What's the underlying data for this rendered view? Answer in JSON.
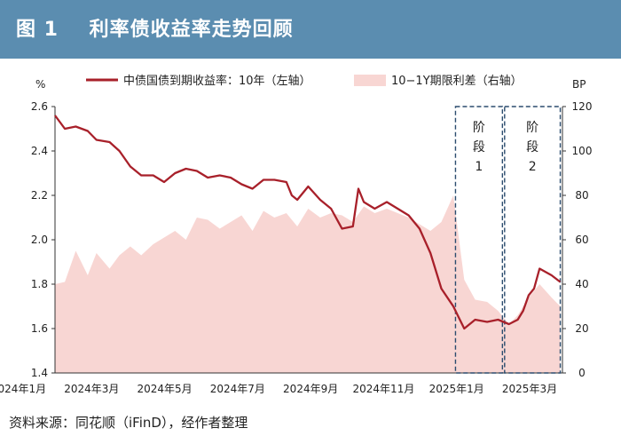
{
  "figure": {
    "title": "图 1    利率债收益率走势回顾",
    "source": "资料来源：同花顺（iFinD），经作者整理"
  },
  "chart_data": {
    "type": "line",
    "x_ticks": [
      "2024年1月",
      "2024年3月",
      "2024年5月",
      "2024年7月",
      "2024年9月",
      "2024年11月",
      "2025年1月",
      "2025年3月"
    ],
    "x_range": [
      "2024-01-01",
      "2025-04-10"
    ],
    "y_left": {
      "label": "%",
      "ylim": [
        1.4,
        2.6
      ],
      "ticks": [
        "1.4",
        "1.6",
        "1.8",
        "2.0",
        "2.2",
        "2.4",
        "2.6"
      ]
    },
    "y_right": {
      "label": "BP",
      "ylim": [
        0,
        120
      ],
      "ticks": [
        "0",
        "20",
        "40",
        "60",
        "80",
        "100",
        "120"
      ]
    },
    "legend": {
      "placement": "top",
      "line_label": "中债国债到期收益率：10年（左轴）",
      "area_label": "10−1Y期限利差（右轴）"
    },
    "colors": {
      "line": "#a8202a",
      "area": "#f8d6d3",
      "header": "#5b8db0",
      "box": "#2b4c6e"
    },
    "annotations": [
      {
        "label_lines": [
          "阶",
          "段",
          "1"
        ],
        "start": "2025-01-02",
        "end": "2025-02-14"
      },
      {
        "label_lines": [
          "阶",
          "段",
          "2"
        ],
        "start": "2025-02-16",
        "end": "2025-04-08"
      }
    ],
    "series": [
      {
        "axis": "left",
        "kind": "line",
        "x": [
          "2024-01-01",
          "2024-01-10",
          "2024-01-20",
          "2024-01-31",
          "2024-02-08",
          "2024-02-20",
          "2024-02-29",
          "2024-03-10",
          "2024-03-20",
          "2024-03-31",
          "2024-04-10",
          "2024-04-20",
          "2024-04-30",
          "2024-05-10",
          "2024-05-20",
          "2024-05-31",
          "2024-06-10",
          "2024-06-20",
          "2024-06-30",
          "2024-07-10",
          "2024-07-20",
          "2024-07-31",
          "2024-08-05",
          "2024-08-10",
          "2024-08-20",
          "2024-08-31",
          "2024-09-10",
          "2024-09-20",
          "2024-09-30",
          "2024-10-05",
          "2024-10-10",
          "2024-10-20",
          "2024-10-31",
          "2024-11-10",
          "2024-11-20",
          "2024-11-30",
          "2024-12-10",
          "2024-12-20",
          "2024-12-31",
          "2025-01-05",
          "2025-01-10",
          "2025-01-20",
          "2025-01-31",
          "2025-02-10",
          "2025-02-20",
          "2025-02-28",
          "2025-03-05",
          "2025-03-10",
          "2025-03-15",
          "2025-03-20",
          "2025-03-31",
          "2025-04-08"
        ],
        "y": [
          2.56,
          2.5,
          2.51,
          2.49,
          2.45,
          2.44,
          2.4,
          2.33,
          2.29,
          2.29,
          2.26,
          2.3,
          2.32,
          2.31,
          2.28,
          2.29,
          2.28,
          2.25,
          2.23,
          2.27,
          2.27,
          2.26,
          2.2,
          2.18,
          2.24,
          2.18,
          2.14,
          2.05,
          2.06,
          2.23,
          2.17,
          2.14,
          2.17,
          2.14,
          2.11,
          2.05,
          1.94,
          1.78,
          1.7,
          1.65,
          1.6,
          1.64,
          1.63,
          1.64,
          1.62,
          1.64,
          1.68,
          1.75,
          1.78,
          1.87,
          1.84,
          1.81
        ]
      },
      {
        "axis": "right",
        "kind": "area",
        "x": [
          "2024-01-01",
          "2024-01-10",
          "2024-01-20",
          "2024-01-31",
          "2024-02-08",
          "2024-02-20",
          "2024-02-29",
          "2024-03-10",
          "2024-03-20",
          "2024-03-31",
          "2024-04-10",
          "2024-04-20",
          "2024-04-30",
          "2024-05-10",
          "2024-05-20",
          "2024-05-31",
          "2024-06-10",
          "2024-06-20",
          "2024-06-30",
          "2024-07-10",
          "2024-07-20",
          "2024-07-31",
          "2024-08-10",
          "2024-08-20",
          "2024-08-31",
          "2024-09-10",
          "2024-09-20",
          "2024-09-30",
          "2024-10-10",
          "2024-10-20",
          "2024-10-31",
          "2024-11-10",
          "2024-11-20",
          "2024-11-30",
          "2024-12-10",
          "2024-12-20",
          "2024-12-31",
          "2025-01-10",
          "2025-01-20",
          "2025-01-31",
          "2025-02-10",
          "2025-02-20",
          "2025-02-28",
          "2025-03-10",
          "2025-03-20",
          "2025-03-31",
          "2025-04-08"
        ],
        "y": [
          40,
          41,
          55,
          44,
          54,
          47,
          53,
          57,
          53,
          58,
          61,
          64,
          60,
          70,
          69,
          65,
          68,
          71,
          64,
          73,
          70,
          72,
          66,
          74,
          70,
          72,
          71,
          68,
          75,
          72,
          74,
          72,
          70,
          67,
          64,
          68,
          80,
          42,
          33,
          32,
          28,
          22,
          26,
          34,
          40,
          34,
          30
        ]
      }
    ]
  }
}
